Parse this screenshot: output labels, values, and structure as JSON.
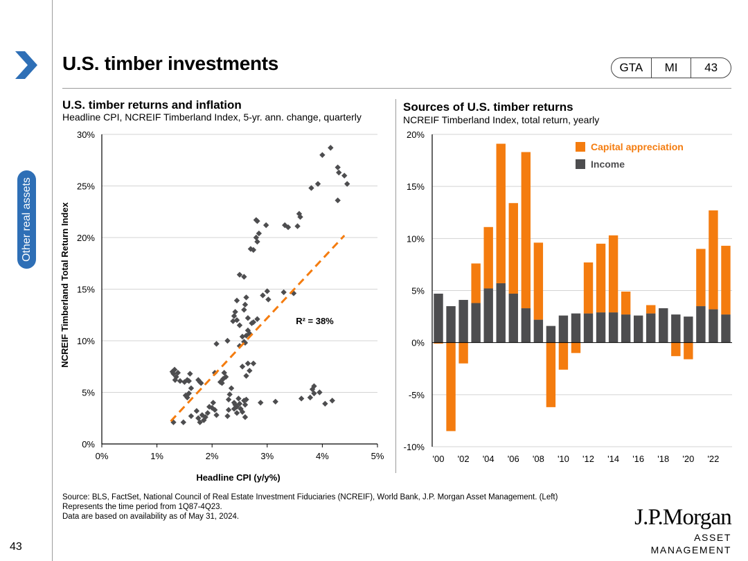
{
  "page": {
    "title": "U.S. timber investments",
    "section_tab": "Other real assets",
    "page_number": "43",
    "nav_pill": [
      "GTA",
      "MI",
      "43"
    ],
    "source_lines": [
      "Source: BLS, FactSet, National Council of Real Estate Investment Fiduciaries (NCREIF), World Bank, J.P. Morgan Asset Management. (Left)",
      "Represents the time period from 1Q87-4Q23.",
      "Data are based on availability as of May 31, 2024."
    ],
    "logo_line1": "J.P.Morgan",
    "logo_line2": "ASSET MANAGEMENT"
  },
  "colors": {
    "orange": "#f47c0f",
    "gray": "#4d4d4f",
    "blue": "#2e6fb6",
    "grid": "#d3d3d3"
  },
  "chart_data": [
    {
      "type": "scatter",
      "title": "U.S. timber returns and inflation",
      "subtitle": "Headline CPI, NCREIF Timberland Index, 5-yr. ann. change, quarterly",
      "xlabel": "Headline CPI (y/y%)",
      "ylabel": "NCREIF Timberland Total Return Index",
      "xlim": [
        0,
        5
      ],
      "ylim": [
        0,
        30
      ],
      "xticks": [
        0,
        1,
        2,
        3,
        4,
        5
      ],
      "xtick_labels": [
        "0%",
        "1%",
        "2%",
        "3%",
        "4%",
        "5%"
      ],
      "yticks": [
        0,
        5,
        10,
        15,
        20,
        25,
        30
      ],
      "ytick_labels": [
        "0%",
        "5%",
        "10%",
        "15%",
        "20%",
        "25%",
        "30%"
      ],
      "annotation": "R² = 38%",
      "trendline": {
        "x": [
          1.25,
          4.4
        ],
        "y": [
          2.2,
          20.2
        ]
      },
      "points": [
        [
          1.28,
          7.0
        ],
        [
          1.3,
          6.8
        ],
        [
          1.32,
          7.2
        ],
        [
          1.35,
          6.5
        ],
        [
          1.38,
          6.9
        ],
        [
          1.33,
          6.2
        ],
        [
          1.42,
          6.1
        ],
        [
          1.5,
          6.0
        ],
        [
          1.55,
          6.2
        ],
        [
          1.58,
          6.1
        ],
        [
          1.6,
          6.8
        ],
        [
          1.75,
          6.2
        ],
        [
          1.78,
          6.0
        ],
        [
          1.8,
          5.9
        ],
        [
          1.52,
          4.7
        ],
        [
          1.55,
          4.5
        ],
        [
          1.58,
          4.9
        ],
        [
          1.62,
          5.4
        ],
        [
          1.3,
          2.1
        ],
        [
          1.48,
          2.1
        ],
        [
          1.62,
          2.7
        ],
        [
          1.72,
          3.2
        ],
        [
          1.75,
          2.5
        ],
        [
          1.78,
          2.1
        ],
        [
          1.82,
          2.8
        ],
        [
          1.85,
          2.3
        ],
        [
          1.88,
          2.6
        ],
        [
          1.92,
          3.0
        ],
        [
          1.95,
          3.6
        ],
        [
          2.0,
          3.5
        ],
        [
          2.02,
          4.0
        ],
        [
          2.05,
          3.3
        ],
        [
          2.08,
          2.8
        ],
        [
          2.05,
          6.9
        ],
        [
          2.08,
          9.7
        ],
        [
          2.15,
          6.0
        ],
        [
          2.18,
          5.9
        ],
        [
          2.2,
          6.3
        ],
        [
          2.22,
          6.9
        ],
        [
          2.25,
          6.5
        ],
        [
          2.28,
          10.0
        ],
        [
          2.3,
          4.3
        ],
        [
          2.32,
          4.8
        ],
        [
          2.35,
          5.4
        ],
        [
          2.3,
          3.3
        ],
        [
          2.28,
          2.7
        ],
        [
          2.4,
          4.0
        ],
        [
          2.42,
          3.8
        ],
        [
          2.45,
          3.6
        ],
        [
          2.48,
          4.4
        ],
        [
          2.5,
          3.9
        ],
        [
          2.52,
          3.4
        ],
        [
          2.55,
          3.1
        ],
        [
          2.58,
          4.2
        ],
        [
          2.6,
          3.8
        ],
        [
          2.62,
          4.3
        ],
        [
          2.6,
          2.6
        ],
        [
          2.4,
          3.4
        ],
        [
          2.45,
          3.0
        ],
        [
          2.38,
          11.9
        ],
        [
          2.4,
          12.4
        ],
        [
          2.42,
          12.8
        ],
        [
          2.45,
          12.0
        ],
        [
          2.5,
          11.5
        ],
        [
          2.55,
          10.4
        ],
        [
          2.58,
          9.9
        ],
        [
          2.5,
          9.5
        ],
        [
          2.6,
          9.8
        ],
        [
          2.62,
          10.5
        ],
        [
          2.65,
          11.0
        ],
        [
          2.72,
          11.7
        ],
        [
          2.68,
          10.7
        ],
        [
          2.75,
          11.8
        ],
        [
          2.82,
          12.1
        ],
        [
          2.65,
          12.2
        ],
        [
          2.58,
          13.0
        ],
        [
          2.6,
          13.5
        ],
        [
          2.62,
          14.2
        ],
        [
          2.68,
          7.1
        ],
        [
          2.62,
          6.6
        ],
        [
          2.55,
          7.5
        ],
        [
          2.65,
          7.8
        ],
        [
          2.75,
          7.8
        ],
        [
          2.88,
          4.0
        ],
        [
          2.45,
          13.9
        ],
        [
          2.5,
          16.4
        ],
        [
          2.58,
          16.2
        ],
        [
          2.7,
          18.9
        ],
        [
          2.75,
          18.8
        ],
        [
          2.8,
          20.0
        ],
        [
          2.82,
          19.6
        ],
        [
          2.85,
          20.4
        ],
        [
          2.8,
          21.7
        ],
        [
          2.82,
          21.6
        ],
        [
          2.98,
          21.2
        ],
        [
          3.32,
          21.2
        ],
        [
          3.38,
          21.0
        ],
        [
          3.55,
          21.1
        ],
        [
          3.6,
          22.0
        ],
        [
          3.58,
          22.3
        ],
        [
          2.92,
          14.4
        ],
        [
          3.0,
          14.8
        ],
        [
          3.3,
          14.7
        ],
        [
          3.48,
          14.6
        ],
        [
          3.02,
          14.0
        ],
        [
          3.15,
          4.1
        ],
        [
          3.62,
          4.4
        ],
        [
          3.78,
          4.5
        ],
        [
          3.82,
          5.3
        ],
        [
          3.85,
          5.6
        ],
        [
          3.85,
          4.9
        ],
        [
          3.95,
          5.0
        ],
        [
          4.05,
          3.9
        ],
        [
          4.18,
          4.2
        ],
        [
          3.8,
          24.8
        ],
        [
          3.92,
          25.2
        ],
        [
          4.15,
          28.7
        ],
        [
          4.0,
          28.0
        ],
        [
          4.28,
          26.8
        ],
        [
          4.3,
          26.3
        ],
        [
          4.4,
          26.0
        ],
        [
          4.45,
          25.2
        ],
        [
          4.28,
          23.6
        ]
      ]
    },
    {
      "type": "bar",
      "stacked": true,
      "title": "Sources of U.S. timber returns",
      "subtitle": "NCREIF Timberland Index, total return, yearly",
      "ylim": [
        -10,
        20
      ],
      "yticks": [
        -10,
        -5,
        0,
        5,
        10,
        15,
        20
      ],
      "ytick_labels": [
        "-10%",
        "-5%",
        "0%",
        "5%",
        "10%",
        "15%",
        "20%"
      ],
      "categories": [
        "2000",
        "2001",
        "2002",
        "2003",
        "2004",
        "2005",
        "2006",
        "2007",
        "2008",
        "2009",
        "2010",
        "2011",
        "2012",
        "2013",
        "2014",
        "2015",
        "2016",
        "2017",
        "2018",
        "2019",
        "2020",
        "2021",
        "2022",
        "2023"
      ],
      "xtick_labels": [
        "'00",
        "'02",
        "'04",
        "'06",
        "'08",
        "'10",
        "'12",
        "'14",
        "'16",
        "'18",
        "'20",
        "'22"
      ],
      "legend": [
        "Capital appreciation",
        "Income"
      ],
      "legend_position": "top-right",
      "series": [
        {
          "name": "Income",
          "color": "#4d4d4f",
          "values": [
            4.7,
            3.5,
            4.1,
            3.8,
            5.2,
            5.7,
            4.7,
            3.3,
            2.2,
            1.6,
            2.6,
            2.8,
            2.8,
            2.9,
            2.9,
            2.7,
            2.6,
            2.8,
            3.3,
            2.7,
            2.5,
            3.5,
            3.2,
            2.7
          ]
        },
        {
          "name": "Capital appreciation",
          "color": "#f47c0f",
          "values": [
            -0.1,
            -8.5,
            -2.0,
            3.8,
            5.9,
            13.4,
            8.7,
            15.0,
            7.4,
            -6.2,
            -2.6,
            -1.0,
            4.9,
            6.6,
            7.4,
            2.2,
            0.0,
            0.8,
            0.0,
            -1.3,
            -1.6,
            5.5,
            9.5,
            6.6
          ]
        }
      ]
    }
  ]
}
